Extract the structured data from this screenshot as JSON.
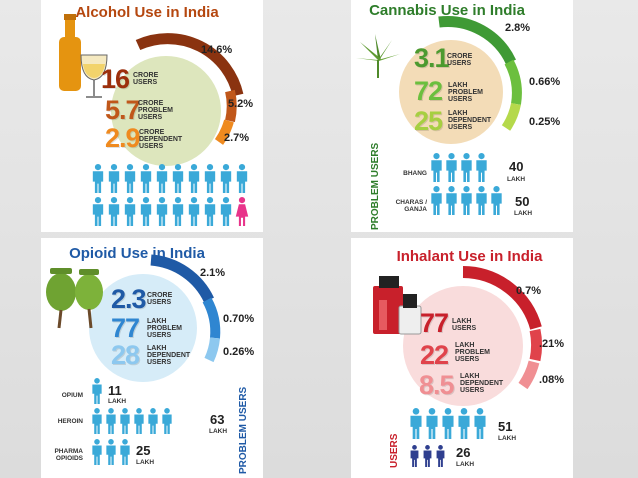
{
  "alcohol": {
    "title": "Alcohol Use in India",
    "pct_top": "14.6%",
    "pct_mid": "5.2%",
    "pct_bot": "2.7%",
    "n1": "16",
    "l1": "CRORE\nUSERS",
    "n2": "5.7",
    "l2": "CRORE\nPROBLEM\nUSERS",
    "n3": "2.9",
    "l3": "CRORE\nDEPENDENT\nUSERS",
    "people_rows": [
      10,
      10
    ],
    "female_last": true,
    "colors": {
      "title": "#b5470f",
      "arc1": "#8a3310",
      "arc2": "#c0571a",
      "arc3": "#ef8a1f",
      "circle": "#dde6bd",
      "people": "#3aa9d8",
      "female": "#e8348a"
    }
  },
  "cannabis": {
    "title": "Cannabis Use in India",
    "pct_top": "2.8%",
    "pct_mid": "0.66%",
    "pct_bot": "0.25%",
    "n1": "3.1",
    "l1": "CRORE\nUSERS",
    "n2": "72",
    "l2": "LAKH\nPROBLEM\nUSERS",
    "n3": "25",
    "l3": "LAKH\nDEPENDENT\nUSERS",
    "rows": [
      {
        "label": "BHANG",
        "value": "40",
        "unit": "LAKH",
        "count": 4
      },
      {
        "label": "CHARAS /\nGANJA",
        "value": "50",
        "unit": "LAKH",
        "count": 5
      }
    ],
    "side_label": "PROBLEM USERS",
    "colors": {
      "title": "#2e7d2a",
      "arc1": "#3f9a35",
      "arc2": "#6cbf3e",
      "arc3": "#b5d94b",
      "circle": "#f3dcb7",
      "people": "#3aa9d8",
      "side": "#2e7d2a"
    }
  },
  "opioid": {
    "title": "Opioid Use in India",
    "pct_top": "2.1%",
    "pct_mid": "0.70%",
    "pct_bot": "0.26%",
    "n1": "2.3",
    "l1": "CRORE\nUSERS",
    "n2": "77",
    "l2": "LAKH\nPROBLEM\nUSERS",
    "n3": "28",
    "l3": "LAKH\nDEPENDENT\nUSERS",
    "rows": [
      {
        "label": "OPIUM",
        "value": "11",
        "unit": "LAKH",
        "count": 1
      },
      {
        "label": "HEROIN",
        "value": "63",
        "unit": "LAKH",
        "count": 6
      },
      {
        "label": "PHARMA\nOPIOIDS",
        "value": "25",
        "unit": "LAKH",
        "count": 3
      }
    ],
    "side_label": "PROBLEM USERS",
    "colors": {
      "title": "#1f5aa6",
      "arc1": "#1f5aa6",
      "arc2": "#2f86d1",
      "arc3": "#8dc8ef",
      "circle": "#d6ecf8",
      "people": "#3aa9d8",
      "side": "#1f5aa6"
    }
  },
  "inhalant": {
    "title": "Inhalant Use in India",
    "pct_top": "0.7%",
    "pct_mid": ".21%",
    "pct_bot": ".08%",
    "n1": "77",
    "l1": "LAKH\nUSERS",
    "n2": "22",
    "l2": "LAKH\nPROBLEM\nUSERS",
    "n3": "8.5",
    "l3": "LAKH\nDEPENDENT\nUSERS",
    "rows": [
      {
        "value": "51",
        "unit": "LAKH",
        "count": 5
      },
      {
        "value": "26",
        "unit": "LAKH",
        "count": 3
      }
    ],
    "side_label": "USERS",
    "colors": {
      "title": "#c8202b",
      "arc1": "#c8202b",
      "arc2": "#e0434b",
      "arc3": "#f08f93",
      "circle": "#f9dcdc",
      "people": "#3aa9d8",
      "kids": "#2f3f8f",
      "side": "#c8202b"
    }
  }
}
